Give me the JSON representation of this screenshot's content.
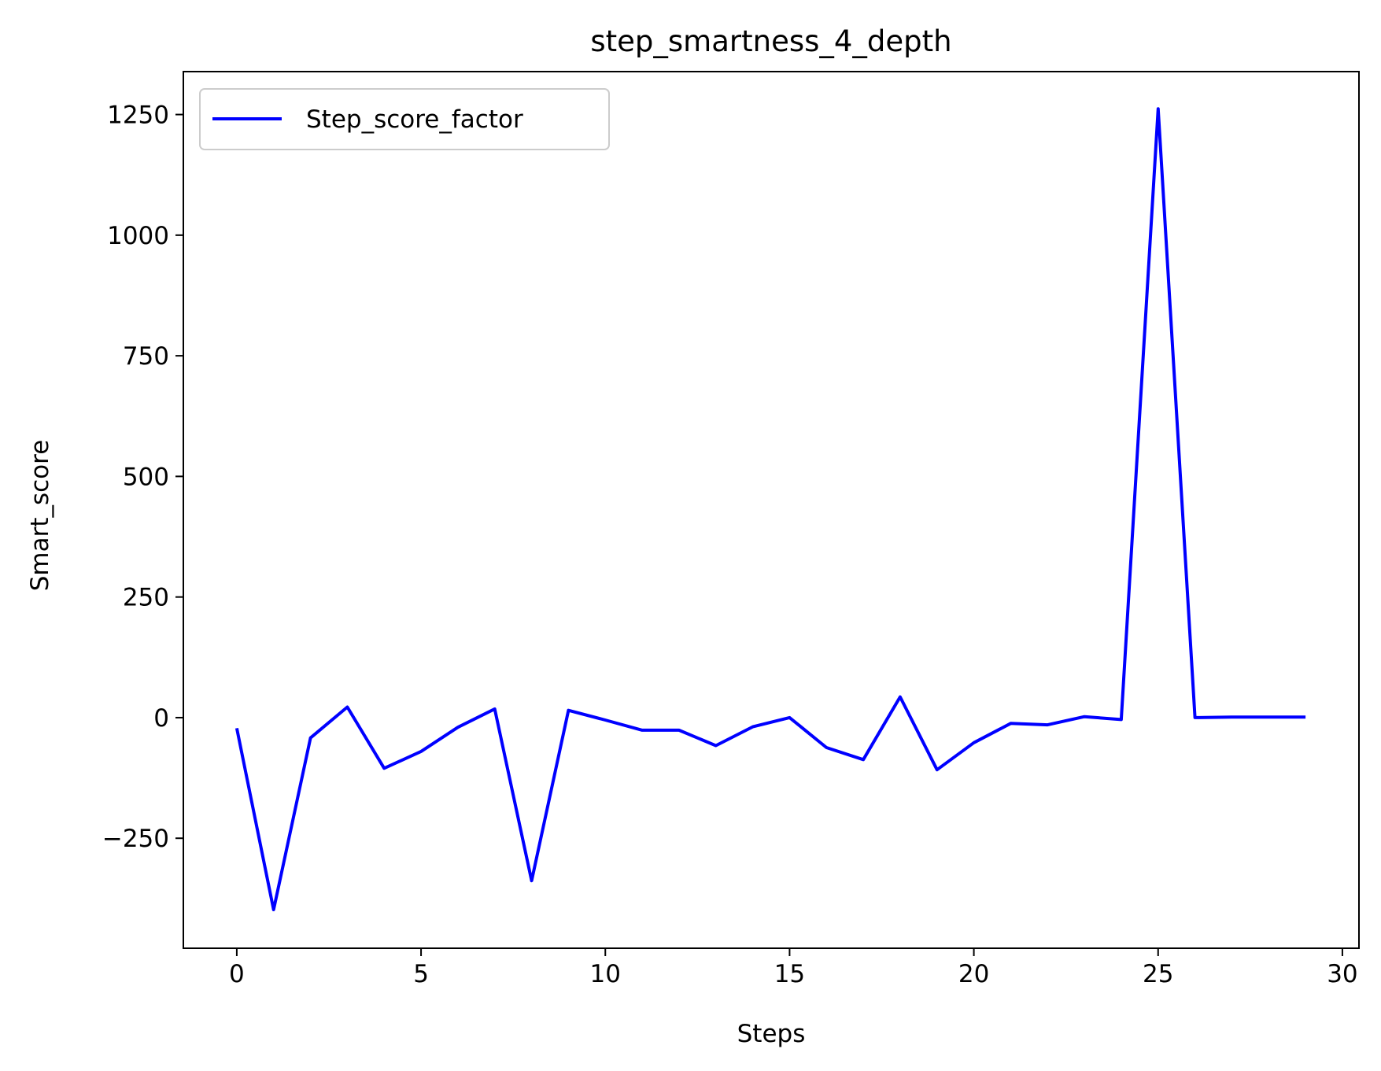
{
  "chart_data": {
    "type": "line",
    "title": "step_smartness_4_depth",
    "xlabel": "Steps",
    "ylabel": "Smart_score",
    "xlim": [
      -1.45,
      30.45
    ],
    "ylim": [
      -478,
      1339
    ],
    "xticks": [
      0,
      5,
      10,
      15,
      20,
      25,
      30
    ],
    "yticks": [
      -250,
      0,
      250,
      500,
      750,
      1000,
      1250
    ],
    "ytick_labels": [
      "−250",
      "0",
      "250",
      "500",
      "750",
      "1000",
      "1250"
    ],
    "legend": {
      "placement": "upper-left"
    },
    "grid": false,
    "series": [
      {
        "name": "Step_score_factor",
        "color": "#0000ff",
        "x": [
          0,
          1,
          2,
          3,
          4,
          5,
          6,
          7,
          8,
          9,
          10,
          11,
          12,
          13,
          14,
          15,
          16,
          17,
          18,
          19,
          20,
          21,
          22,
          23,
          24,
          25,
          26,
          27,
          28,
          29
        ],
        "values": [
          -22,
          -398,
          -42,
          22,
          -105,
          -70,
          -20,
          18,
          -338,
          15,
          -5,
          -26,
          -26,
          -58,
          -19,
          0,
          -62,
          -87,
          43,
          -108,
          -52,
          -12,
          -15,
          2,
          -4,
          1262,
          0,
          1,
          1,
          1
        ]
      }
    ]
  }
}
